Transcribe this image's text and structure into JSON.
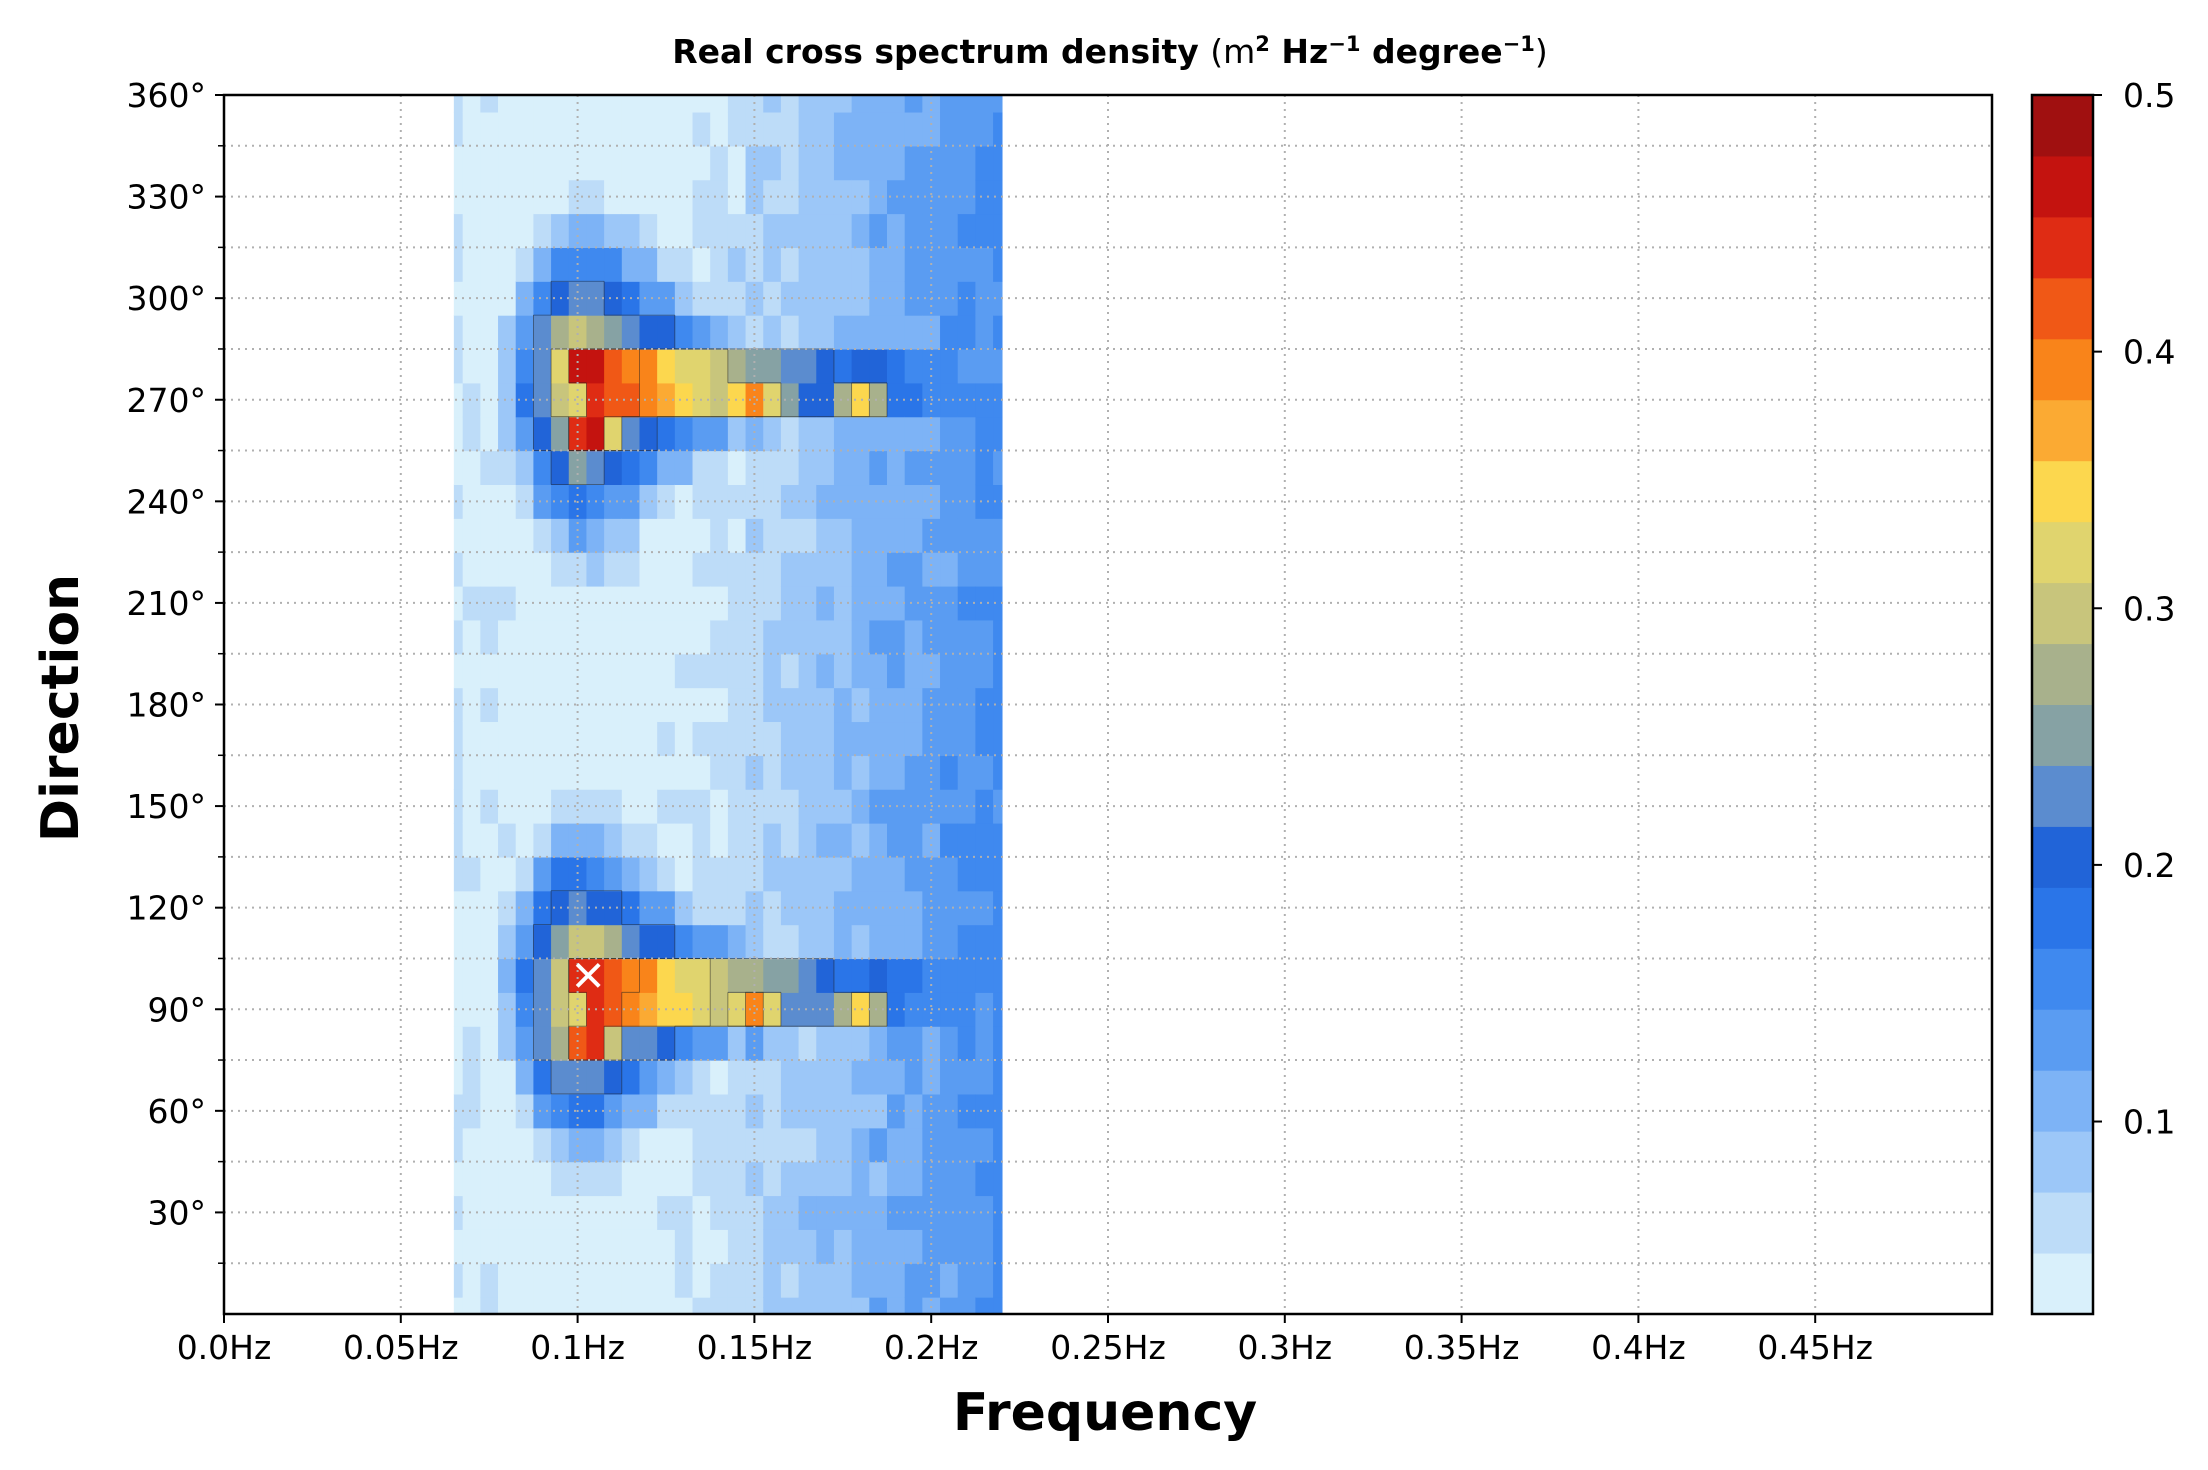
{
  "chart_data": {
    "type": "heatmap",
    "title": "Real cross spectrum density",
    "title_units": [
      "(m",
      "2",
      "Hz",
      "−1",
      "degree",
      "−1",
      ")"
    ],
    "xlabel": "Frequency",
    "ylabel": "Direction",
    "xlim": [
      0.0,
      0.5
    ],
    "ylim": [
      0,
      360
    ],
    "x_ticks": [
      {
        "v": 0.0,
        "label": "0.0Hz"
      },
      {
        "v": 0.05,
        "label": "0.05Hz"
      },
      {
        "v": 0.1,
        "label": "0.1Hz"
      },
      {
        "v": 0.15,
        "label": "0.15Hz"
      },
      {
        "v": 0.2,
        "label": "0.2Hz"
      },
      {
        "v": 0.25,
        "label": "0.25Hz"
      },
      {
        "v": 0.3,
        "label": "0.3Hz"
      },
      {
        "v": 0.35,
        "label": "0.35Hz"
      },
      {
        "v": 0.4,
        "label": "0.4Hz"
      },
      {
        "v": 0.45,
        "label": "0.45Hz"
      }
    ],
    "y_ticks": [
      {
        "v": 30,
        "label": "30°"
      },
      {
        "v": 60,
        "label": "60°"
      },
      {
        "v": 90,
        "label": "90°"
      },
      {
        "v": 120,
        "label": "120°"
      },
      {
        "v": 150,
        "label": "150°"
      },
      {
        "v": 180,
        "label": "180°"
      },
      {
        "v": 210,
        "label": "210°"
      },
      {
        "v": 240,
        "label": "240°"
      },
      {
        "v": 270,
        "label": "270°"
      },
      {
        "v": 300,
        "label": "300°"
      },
      {
        "v": 330,
        "label": "330°"
      },
      {
        "v": 360,
        "label": "360°"
      }
    ],
    "grid": true,
    "data_extent_x": [
      0.065,
      0.22
    ],
    "peaks": [
      {
        "freq": 0.103,
        "dir": 100,
        "value": 0.48,
        "marker": "x"
      },
      {
        "freq": 0.102,
        "dir": 280,
        "value": 0.48
      },
      {
        "freq": 0.103,
        "dir": 260,
        "value": 0.46
      },
      {
        "freq": 0.103,
        "dir": 80,
        "value": 0.46
      },
      {
        "freq": 0.15,
        "dir": 270,
        "value": 0.4
      },
      {
        "freq": 0.15,
        "dir": 90,
        "value": 0.4
      },
      {
        "freq": 0.18,
        "dir": 270,
        "value": 0.34
      },
      {
        "freq": 0.18,
        "dir": 90,
        "value": 0.34
      }
    ],
    "colorbar": {
      "min": 0.025,
      "max": 0.5,
      "ticks": [
        {
          "v": 0.1,
          "label": "0.1"
        },
        {
          "v": 0.2,
          "label": "0.2"
        },
        {
          "v": 0.3,
          "label": "0.3"
        },
        {
          "v": 0.4,
          "label": "0.4"
        },
        {
          "v": 0.5,
          "label": "0.5"
        }
      ],
      "colors": [
        "#d9f0fb",
        "#bddcf8",
        "#9cc7f8",
        "#7db3f6",
        "#5a9cf2",
        "#3f89ef",
        "#2a75e8",
        "#2164d8",
        "#5b8ccf",
        "#86a2a4",
        "#a8b18c",
        "#c8c57c",
        "#e0d46e",
        "#fcd74e",
        "#fbaa33",
        "#f9841a",
        "#f05816",
        "#df2c14",
        "#c4130f",
        "#a01010"
      ]
    },
    "frequency_axis": {
      "fmin": 0.065,
      "fstep": 0.005,
      "count": 32
    },
    "direction_axis": {
      "dmin": 0,
      "dstep": 10,
      "count": 37
    }
  }
}
